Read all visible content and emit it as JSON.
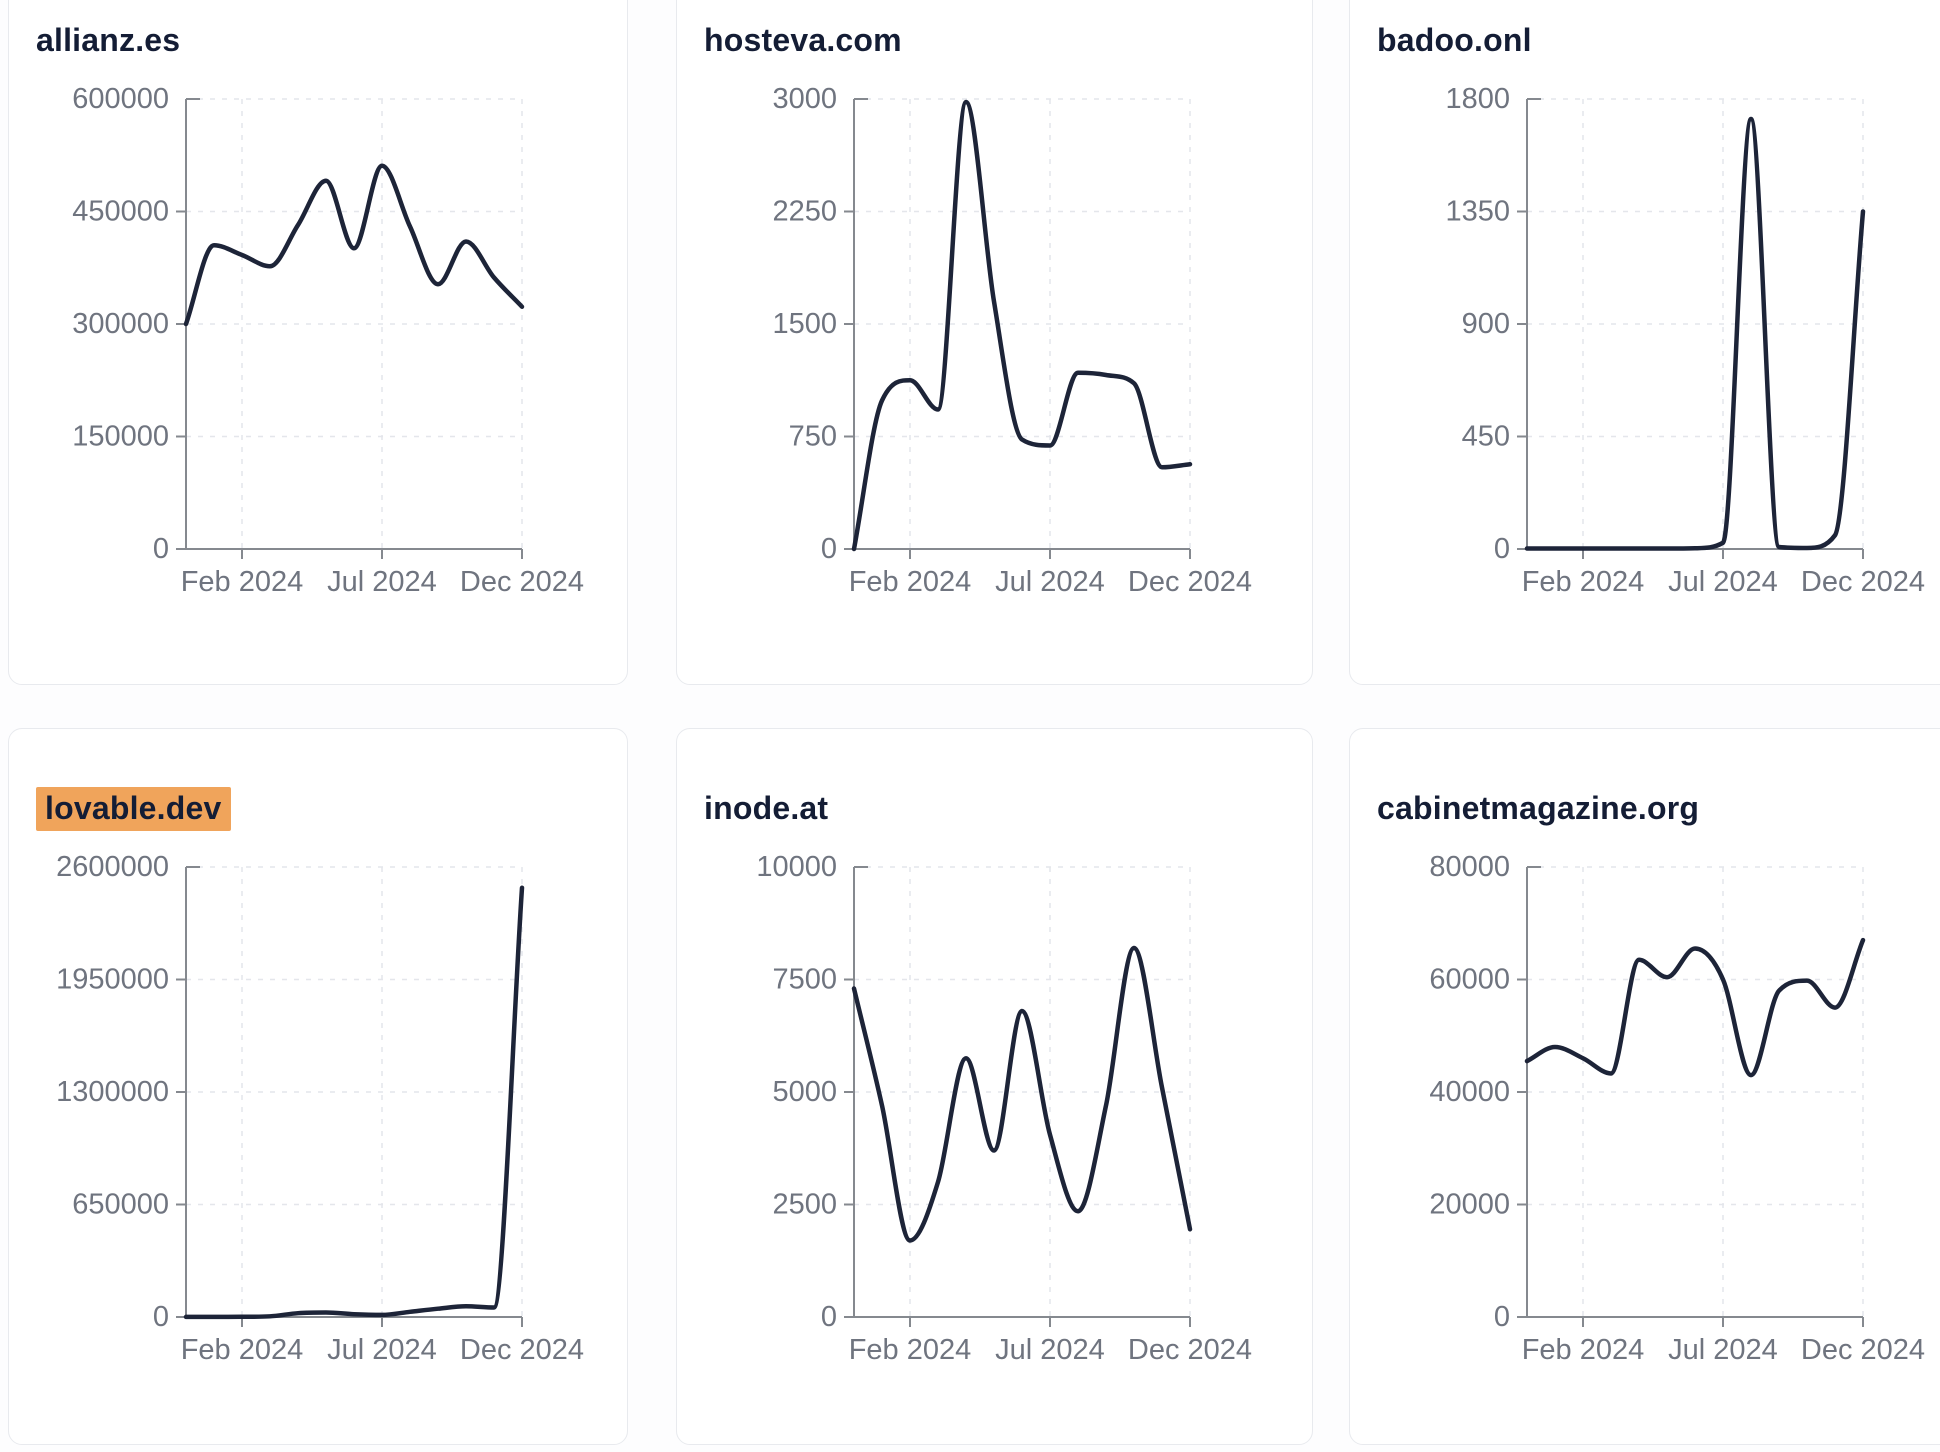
{
  "page": {
    "background": "#fdfdfe",
    "card_background": "#ffffff",
    "card_border": "#e8eaee"
  },
  "colors": {
    "line": "#1d2438",
    "title": "#141d35",
    "axis": "#85898f",
    "tick_label": "#6f747f",
    "grid": "#e4e6eb",
    "highlight": "#f0a45b"
  },
  "x_axis_tick_labels": [
    "Feb 2024",
    "Jul 2024",
    "Dec 2024"
  ],
  "chart_data": [
    {
      "type": "line",
      "title": "allianz.es",
      "highlighted": false,
      "x": [
        "Dec 2023",
        "Jan 2024",
        "Feb 2024",
        "Mar 2024",
        "Apr 2024",
        "May 2024",
        "Jun 2024",
        "Jul 2024",
        "Aug 2024",
        "Sep 2024",
        "Oct 2024",
        "Nov 2024",
        "Dec 2024"
      ],
      "values": [
        300000,
        405000,
        392000,
        377000,
        432000,
        491000,
        401000,
        511000,
        430000,
        353000,
        410000,
        362000,
        323000
      ],
      "y_ticks": [
        0,
        150000,
        300000,
        450000,
        600000
      ],
      "ylim": [
        0,
        600000
      ],
      "x_tick_labels": [
        "Feb 2024",
        "Jul 2024",
        "Dec 2024"
      ],
      "x_tick_positions": [
        2,
        7,
        12
      ],
      "grid": true,
      "legend": "none"
    },
    {
      "type": "line",
      "title": "hosteva.com",
      "highlighted": false,
      "x": [
        "Dec 2023",
        "Jan 2024",
        "Feb 2024",
        "Mar 2024",
        "Apr 2024",
        "May 2024",
        "Jun 2024",
        "Jul 2024",
        "Aug 2024",
        "Sep 2024",
        "Oct 2024",
        "Nov 2024",
        "Dec 2024"
      ],
      "values": [
        0,
        990,
        1125,
        930,
        2980,
        1650,
        730,
        690,
        1175,
        1160,
        1105,
        545,
        565
      ],
      "y_ticks": [
        0,
        750,
        1500,
        2250,
        3000
      ],
      "ylim": [
        0,
        3000
      ],
      "x_tick_labels": [
        "Feb 2024",
        "Jul 2024",
        "Dec 2024"
      ],
      "x_tick_positions": [
        2,
        7,
        12
      ],
      "grid": true,
      "legend": "none"
    },
    {
      "type": "line",
      "title": "badoo.onl",
      "highlighted": false,
      "x": [
        "Dec 2023",
        "Jan 2024",
        "Feb 2024",
        "Mar 2024",
        "Apr 2024",
        "May 2024",
        "Jun 2024",
        "Jul 2024",
        "Aug 2024",
        "Sep 2024",
        "Oct 2024",
        "Nov 2024",
        "Dec 2024"
      ],
      "values": [
        2,
        2,
        2,
        2,
        2,
        2,
        3,
        25,
        1720,
        8,
        4,
        55,
        1350
      ],
      "y_ticks": [
        0,
        450,
        900,
        1350,
        1800
      ],
      "ylim": [
        0,
        1800
      ],
      "x_tick_labels": [
        "Feb 2024",
        "Jul 2024",
        "Dec 2024"
      ],
      "x_tick_positions": [
        2,
        7,
        12
      ],
      "grid": true,
      "legend": "none"
    },
    {
      "type": "line",
      "title": "lovable.dev",
      "highlighted": true,
      "x": [
        "Dec 2023",
        "Jan 2024",
        "Feb 2024",
        "Mar 2024",
        "Apr 2024",
        "May 2024",
        "Jun 2024",
        "Jul 2024",
        "Aug 2024",
        "Sep 2024",
        "Oct 2024",
        "Nov 2024",
        "Dec 2024"
      ],
      "values": [
        500,
        800,
        1200,
        4000,
        22000,
        26000,
        16000,
        12000,
        30000,
        48000,
        62000,
        55000,
        2480000
      ],
      "y_ticks": [
        0,
        650000,
        1300000,
        1950000,
        2600000
      ],
      "ylim": [
        0,
        2600000
      ],
      "x_tick_labels": [
        "Feb 2024",
        "Jul 2024",
        "Dec 2024"
      ],
      "x_tick_positions": [
        2,
        7,
        12
      ],
      "grid": true,
      "legend": "none"
    },
    {
      "type": "line",
      "title": "inode.at",
      "highlighted": false,
      "x": [
        "Dec 2023",
        "Jan 2024",
        "Feb 2024",
        "Mar 2024",
        "Apr 2024",
        "May 2024",
        "Jun 2024",
        "Jul 2024",
        "Aug 2024",
        "Sep 2024",
        "Oct 2024",
        "Nov 2024",
        "Dec 2024"
      ],
      "values": [
        7300,
        4700,
        1700,
        3000,
        5750,
        3700,
        6800,
        4050,
        2350,
        4700,
        8200,
        5100,
        1950
      ],
      "y_ticks": [
        0,
        2500,
        5000,
        7500,
        10000
      ],
      "ylim": [
        0,
        10000
      ],
      "x_tick_labels": [
        "Feb 2024",
        "Jul 2024",
        "Dec 2024"
      ],
      "x_tick_positions": [
        2,
        7,
        12
      ],
      "grid": true,
      "legend": "none"
    },
    {
      "type": "line",
      "title": "cabinetmagazine.org",
      "highlighted": false,
      "x": [
        "Dec 2023",
        "Jan 2024",
        "Feb 2024",
        "Mar 2024",
        "Apr 2024",
        "May 2024",
        "Jun 2024",
        "Jul 2024",
        "Aug 2024",
        "Sep 2024",
        "Oct 2024",
        "Nov 2024",
        "Dec 2024"
      ],
      "values": [
        45500,
        48000,
        46000,
        43300,
        63500,
        60400,
        65500,
        60000,
        43000,
        58000,
        59800,
        55000,
        67000
      ],
      "y_ticks": [
        0,
        20000,
        40000,
        60000,
        80000
      ],
      "ylim": [
        0,
        80000
      ],
      "x_tick_labels": [
        "Feb 2024",
        "Jul 2024",
        "Dec 2024"
      ],
      "x_tick_positions": [
        2,
        7,
        12
      ],
      "grid": true,
      "legend": "none"
    }
  ]
}
